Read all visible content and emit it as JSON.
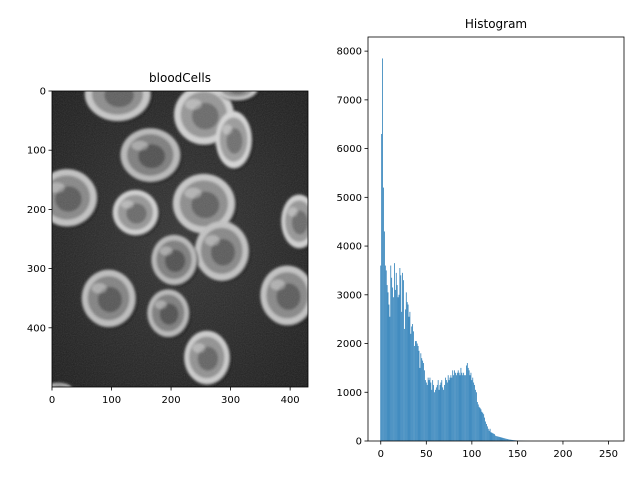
{
  "chart_data": [
    {
      "type": "image",
      "title": "bloodCells",
      "xlim": [
        0,
        430
      ],
      "ylim": [
        500,
        0
      ],
      "xticks": [
        0,
        100,
        200,
        300,
        400
      ],
      "yticks": [
        0,
        100,
        200,
        300,
        400
      ],
      "colormap": "gray",
      "cells": [
        {
          "cx": 110,
          "cy": 5,
          "rx": 55,
          "ry": 45,
          "shade": 200
        },
        {
          "cx": 255,
          "cy": 40,
          "rx": 50,
          "ry": 50,
          "shade": 210
        },
        {
          "cx": 310,
          "cy": -5,
          "rx": 35,
          "ry": 20,
          "shade": 205
        },
        {
          "cx": 305,
          "cy": 82,
          "rx": 30,
          "ry": 48,
          "shade": 215
        },
        {
          "cx": 165,
          "cy": 108,
          "rx": 50,
          "ry": 45,
          "shade": 185
        },
        {
          "cx": 25,
          "cy": 180,
          "rx": 50,
          "ry": 48,
          "shade": 195
        },
        {
          "cx": 140,
          "cy": 205,
          "rx": 38,
          "ry": 38,
          "shade": 210
        },
        {
          "cx": 255,
          "cy": 190,
          "rx": 52,
          "ry": 50,
          "shade": 200
        },
        {
          "cx": 415,
          "cy": 220,
          "rx": 30,
          "ry": 45,
          "shade": 210
        },
        {
          "cx": 285,
          "cy": 270,
          "rx": 45,
          "ry": 50,
          "shade": 195
        },
        {
          "cx": 205,
          "cy": 285,
          "rx": 38,
          "ry": 42,
          "shade": 185
        },
        {
          "cx": 95,
          "cy": 350,
          "rx": 45,
          "ry": 48,
          "shade": 190
        },
        {
          "cx": 395,
          "cy": 345,
          "rx": 45,
          "ry": 50,
          "shade": 195
        },
        {
          "cx": 195,
          "cy": 375,
          "rx": 35,
          "ry": 40,
          "shade": 185
        },
        {
          "cx": 260,
          "cy": 450,
          "rx": 38,
          "ry": 45,
          "shade": 205
        },
        {
          "cx": 10,
          "cy": 505,
          "rx": 25,
          "ry": 12,
          "shade": 200
        }
      ]
    },
    {
      "type": "bar",
      "title": "Histogram",
      "xlim": [
        -14,
        267
      ],
      "ylim": [
        0,
        8290
      ],
      "xticks": [
        0,
        50,
        100,
        150,
        200,
        250
      ],
      "yticks": [
        0,
        1000,
        2000,
        3000,
        4000,
        5000,
        6000,
        7000,
        8000
      ],
      "color": "#1f77b4",
      "x_start": 0,
      "values": [
        3600,
        6300,
        7850,
        5200,
        4300,
        3600,
        3500,
        3200,
        3050,
        2800,
        2550,
        3600,
        3350,
        3150,
        2950,
        3650,
        3100,
        3450,
        3200,
        2950,
        3000,
        3550,
        3400,
        2650,
        3450,
        3300,
        2300,
        2700,
        3050,
        2850,
        2800,
        2550,
        2650,
        2200,
        2350,
        2400,
        2250,
        1950,
        2050,
        2050,
        2000,
        1950,
        1850,
        1500,
        1800,
        1700,
        1650,
        1600,
        1450,
        1250,
        1200,
        1150,
        1300,
        1250,
        1300,
        1200,
        1050,
        1250,
        1150,
        1000,
        1050,
        1100,
        1150,
        1250,
        1050,
        1150,
        1200,
        1250,
        1100,
        1050,
        1150,
        1300,
        1250,
        1200,
        1350,
        1250,
        1300,
        1350,
        1300,
        1450,
        1350,
        1450,
        1400,
        1350,
        1400,
        1450,
        1400,
        1350,
        1500,
        1400,
        1350,
        1400,
        1350,
        1350,
        1550,
        1600,
        1500,
        1450,
        1350,
        1400,
        1250,
        1300,
        1200,
        1150,
        1050,
        1000,
        800,
        750,
        700,
        680,
        650,
        600,
        580,
        550,
        480,
        400,
        350,
        300,
        250,
        210,
        250,
        180,
        170,
        160,
        150,
        140,
        110,
        100,
        95,
        90,
        85,
        80,
        75,
        70,
        65,
        60,
        55,
        50,
        45,
        40,
        35,
        30,
        28,
        25,
        22,
        20,
        18,
        16,
        14,
        12,
        10,
        9,
        8,
        7,
        6,
        5,
        4,
        3,
        3,
        2,
        2,
        1,
        1,
        1,
        0,
        0,
        0,
        0,
        0,
        0,
        0,
        0,
        0,
        0,
        0,
        0,
        0,
        0,
        0,
        0,
        0,
        0,
        0,
        0,
        0,
        0,
        0,
        0,
        0,
        0,
        0,
        0,
        0,
        0,
        0,
        0,
        0,
        0,
        0,
        0,
        0,
        0,
        0,
        0,
        0,
        0,
        0,
        0,
        0,
        0,
        0,
        0,
        0,
        0,
        0,
        0,
        0,
        0,
        0,
        0,
        0,
        0,
        0,
        0,
        0,
        0,
        0,
        0,
        0,
        0,
        0,
        0,
        0,
        0,
        0,
        0,
        0,
        0,
        0,
        0,
        0,
        0,
        0,
        0,
        0,
        0,
        0,
        0,
        0,
        0,
        0,
        0,
        0,
        0,
        0,
        0,
        0,
        0,
        0,
        0,
        0,
        0,
        0,
        0
      ]
    }
  ]
}
